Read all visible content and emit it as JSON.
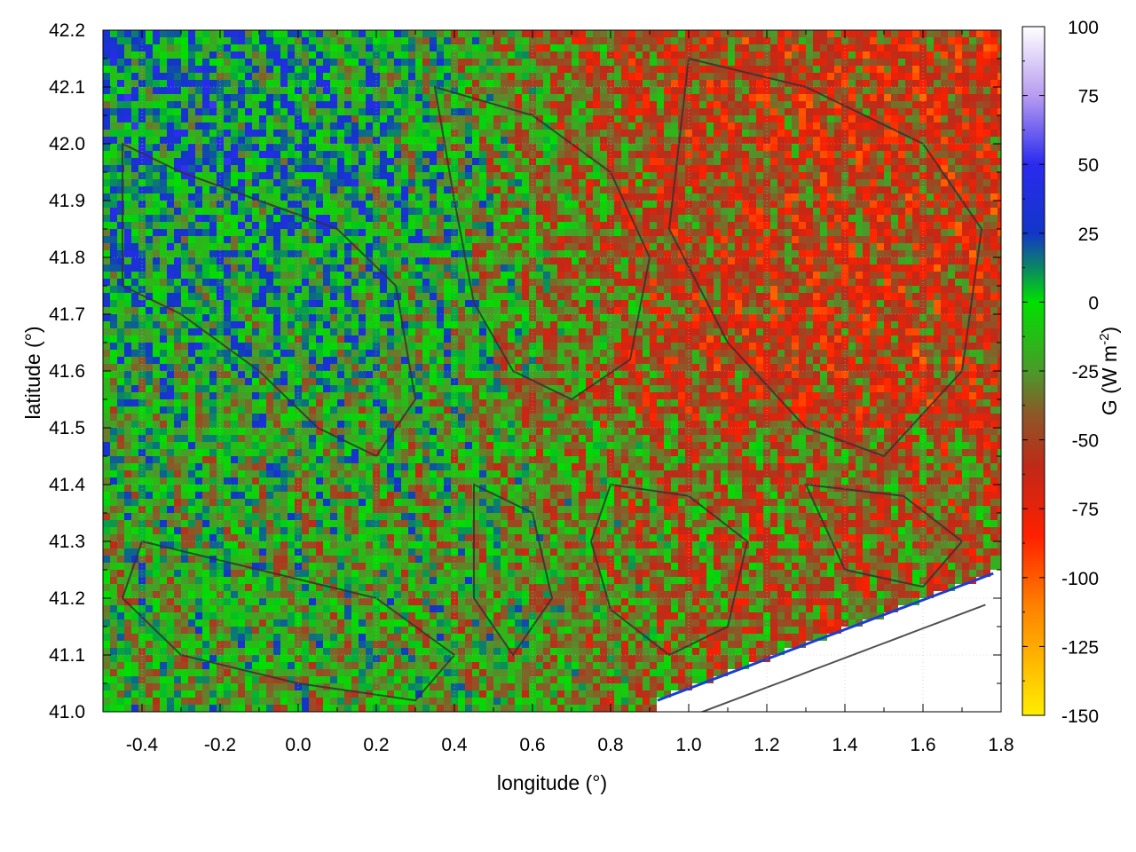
{
  "chart_data": {
    "type": "heatmap",
    "title": "",
    "xlabel": "longitude (°)",
    "ylabel": "latitude (°)",
    "xlim": [
      -0.5,
      1.8
    ],
    "ylim": [
      41.0,
      42.2
    ],
    "xticks": [
      -0.4,
      -0.2,
      0.0,
      0.2,
      0.4,
      0.6,
      0.8,
      1.0,
      1.2,
      1.4,
      1.6,
      1.8
    ],
    "xtick_labels": [
      "-0.4",
      "-0.2",
      "0.0",
      "0.2",
      "0.4",
      "0.6",
      "0.8",
      "1.0",
      "1.2",
      "1.4",
      "1.6",
      "1.8"
    ],
    "yticks": [
      41.0,
      41.1,
      41.2,
      41.3,
      41.4,
      41.5,
      41.6,
      41.7,
      41.8,
      41.9,
      42.0,
      42.1,
      42.2
    ],
    "ytick_labels": [
      "41.0",
      "41.1",
      "41.2",
      "41.3",
      "41.4",
      "41.5",
      "41.6",
      "41.7",
      "41.8",
      "41.9",
      "42.0",
      "42.1",
      "42.2"
    ],
    "grid": true,
    "colorbar": {
      "label": "G (W m-2)",
      "label_main": "G (W m",
      "label_sup": "-2",
      "label_end": ")",
      "range": [
        -150,
        100
      ],
      "ticks": [
        100,
        75,
        50,
        25,
        0,
        -25,
        -50,
        -75,
        -100,
        -125,
        -150
      ],
      "tick_labels": [
        "100",
        "75",
        "50",
        "25",
        "0",
        "-25",
        "-50",
        "-75",
        "-100",
        "-125",
        "-150"
      ],
      "colors": [
        {
          "value": 100,
          "color": "#ffffff"
        },
        {
          "value": 75,
          "color": "#b89cf0"
        },
        {
          "value": 50,
          "color": "#2a2aee"
        },
        {
          "value": 25,
          "color": "#1236c8"
        },
        {
          "value": 12,
          "color": "#0a8a60"
        },
        {
          "value": 0,
          "color": "#00e000"
        },
        {
          "value": -25,
          "color": "#4a9a2a"
        },
        {
          "value": -40,
          "color": "#8a5a28"
        },
        {
          "value": -60,
          "color": "#c02818"
        },
        {
          "value": -85,
          "color": "#ff2000"
        },
        {
          "value": -110,
          "color": "#ff8000"
        },
        {
          "value": -150,
          "color": "#ffee00"
        }
      ]
    },
    "field_summary": [
      {
        "region": "north-west (lon -0.5 to 0.5, lat 41.7 to 42.2)",
        "typical_value": 10
      },
      {
        "region": "north-east (lon 0.8 to 1.8, lat 41.5 to 42.1)",
        "typical_value": -60
      },
      {
        "region": "south-west (lon -0.5 to 0.6, lat 41.0 to 41.5)",
        "typical_value": -15
      },
      {
        "region": "south-east land (lon 0.6 to 1.8, lat 41.1 to 41.5)",
        "typical_value": -45
      },
      {
        "region": "sea south-east of coastline",
        "typical_value": null
      }
    ],
    "contours": "elevation contours (dark gray lines), unlabeled",
    "masked_color": "#ffffff",
    "contour_color": "#333333"
  }
}
